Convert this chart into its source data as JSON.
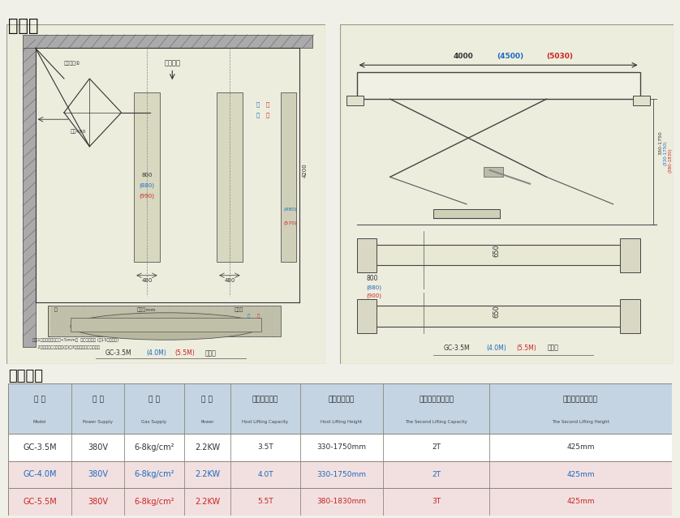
{
  "title_sizing": "尺寸图",
  "title_tech": "技术参数",
  "page_bg": "#f0f0e8",
  "diagram_bg": "#e8e8da",
  "label_40m_color": "#1a6abf",
  "label_55m_color": "#cc2222",
  "table_headers_cn": [
    "型 号",
    "电 源",
    "气 源",
    "功 率",
    "主机举升重量",
    "主机举升高度",
    "二次举升适配重量",
    "二次举升适配高度"
  ],
  "table_headers_en": [
    "Model",
    "Power Supply",
    "Gas Supply",
    "Power",
    "Host Lifting Capacity",
    "Host Lifting Height",
    "The Second Lifting Capacity",
    "The Second Lifting Height"
  ],
  "table_rows": [
    [
      "GC-3.5M",
      "380V",
      "6-8kg/cm²",
      "2.2KW",
      "3.5T",
      "330-1750mm",
      "2T",
      "425mm"
    ],
    [
      "GC-4.0M",
      "380V",
      "6-8kg/cm²",
      "2.2KW",
      "4.0T",
      "330-1750mm",
      "2T",
      "425mm"
    ],
    [
      "GC-5.5M",
      "380V",
      "6-8kg/cm²",
      "2.2KW",
      "5.5T",
      "380-1830mm",
      "3T",
      "425mm"
    ]
  ],
  "row_text_colors": [
    "#333333",
    "#1a6abf",
    "#cc2222"
  ]
}
